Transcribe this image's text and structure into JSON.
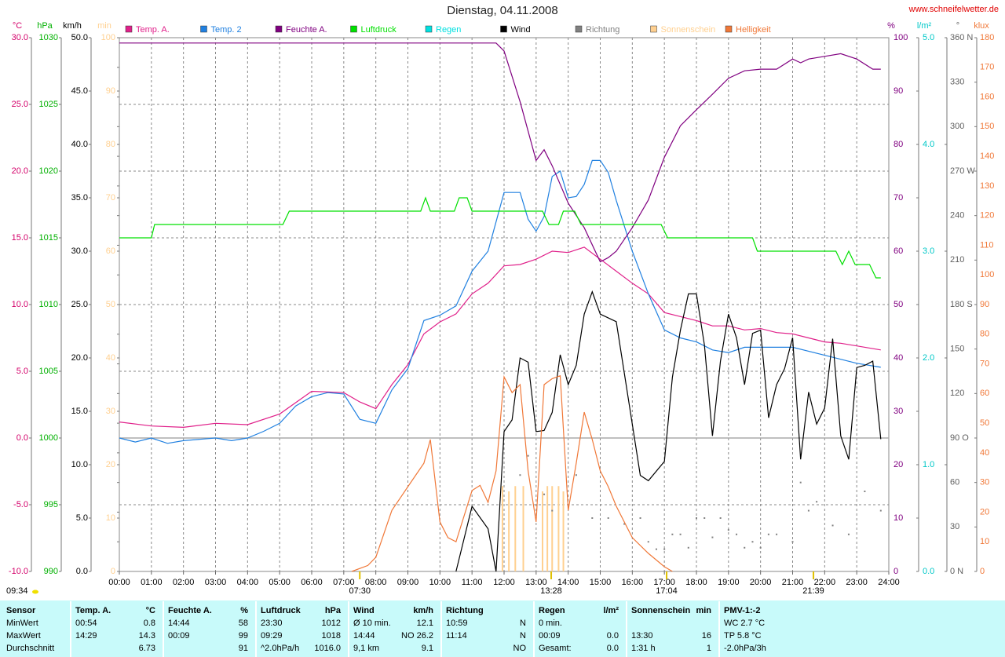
{
  "header": {
    "title": "Dienstag, 04.11.2008",
    "url": "www.schneifelwetter.de",
    "updated": "09:34"
  },
  "chart_data": {
    "type": "line",
    "grid": true,
    "xlim": [
      0,
      24
    ],
    "xticks": [
      {
        "value": 0,
        "label": "00:00"
      },
      {
        "value": 1,
        "label": "01:00"
      },
      {
        "value": 2,
        "label": "02:00"
      },
      {
        "value": 3,
        "label": "03:00"
      },
      {
        "value": 4,
        "label": "04:00"
      },
      {
        "value": 5,
        "label": "05:00"
      },
      {
        "value": 6,
        "label": "06:00"
      },
      {
        "value": 7,
        "label": "07:00"
      },
      {
        "value": 8,
        "label": "08:00"
      },
      {
        "value": 9,
        "label": "09:00"
      },
      {
        "value": 10,
        "label": "10:00"
      },
      {
        "value": 11,
        "label": "11:00"
      },
      {
        "value": 12,
        "label": "12:00"
      },
      {
        "value": 13,
        "label": "13:00"
      },
      {
        "value": 14,
        "label": "14:00"
      },
      {
        "value": 15,
        "label": "15:00"
      },
      {
        "value": 16,
        "label": "16:00"
      },
      {
        "value": 17,
        "label": "17:00"
      },
      {
        "value": 18,
        "label": "18:00"
      },
      {
        "value": 19,
        "label": "19:00"
      },
      {
        "value": 20,
        "label": "20:00"
      },
      {
        "value": 21,
        "label": "21:00"
      },
      {
        "value": 22,
        "label": "22:00"
      },
      {
        "value": 23,
        "label": "23:00"
      },
      {
        "value": 24,
        "label": "24:00"
      }
    ],
    "axes": [
      {
        "label": "°C",
        "side": "left",
        "color": "#d4006a",
        "lim": [
          -10,
          30
        ],
        "ticks": [
          {
            "value": 30,
            "label": "30.0"
          },
          {
            "value": 25,
            "label": "25.0"
          },
          {
            "value": 20,
            "label": "20.0"
          },
          {
            "value": 15,
            "label": "15.0"
          },
          {
            "value": 10,
            "label": "10.0"
          },
          {
            "value": 5,
            "label": "5.0"
          },
          {
            "value": 0,
            "label": "0.0"
          },
          {
            "value": -5,
            "label": "-5.0"
          },
          {
            "value": -10,
            "label": "-10.0"
          }
        ]
      },
      {
        "label": "hPa",
        "side": "left",
        "color": "#00b000",
        "lim": [
          990,
          1030
        ],
        "ticks": [
          1030,
          1025,
          1020,
          1015,
          1010,
          1005,
          1000,
          995,
          990
        ]
      },
      {
        "label": "km/h",
        "side": "left",
        "color": "#000000",
        "lim": [
          0,
          50
        ],
        "ticks": [
          {
            "value": 50,
            "label": "50.0"
          },
          {
            "value": 45,
            "label": "45.0"
          },
          {
            "value": 40,
            "label": "40.0"
          },
          {
            "value": 35,
            "label": "35.0"
          },
          {
            "value": 30,
            "label": "30.0"
          },
          {
            "value": 25,
            "label": "25.0"
          },
          {
            "value": 20,
            "label": "20.0"
          },
          {
            "value": 15,
            "label": "15.0"
          },
          {
            "value": 10,
            "label": "10.0"
          },
          {
            "value": 5,
            "label": "5.0"
          },
          {
            "value": 0,
            "label": "0.0"
          }
        ]
      },
      {
        "label": "min",
        "side": "left",
        "color": "#ffd090",
        "lim": [
          0,
          100
        ],
        "ticks": [
          100,
          90,
          80,
          70,
          60,
          50,
          40,
          30,
          20,
          10,
          0
        ]
      },
      {
        "label": "%",
        "side": "right",
        "color": "#800080",
        "lim": [
          0,
          100
        ],
        "ticks": [
          100,
          90,
          80,
          70,
          60,
          50,
          40,
          30,
          20,
          10,
          0
        ]
      },
      {
        "label": "l/m²",
        "side": "right",
        "color": "#00c8c8",
        "lim": [
          0,
          5
        ],
        "ticks": [
          {
            "value": 5,
            "label": "5.0"
          },
          {
            "value": 4,
            "label": "4.0"
          },
          {
            "value": 3,
            "label": "3.0"
          },
          {
            "value": 2,
            "label": "2.0"
          },
          {
            "value": 1,
            "label": "1.0"
          },
          {
            "value": 0,
            "label": "0.0"
          }
        ]
      },
      {
        "label": "°",
        "side": "right",
        "color": "#606060",
        "lim": [
          0,
          360
        ],
        "ticks": [
          {
            "value": 360,
            "label": "360 N"
          },
          330,
          300,
          {
            "value": 270,
            "label": "270 W"
          },
          240,
          210,
          {
            "value": 180,
            "label": "180 S"
          },
          150,
          120,
          {
            "value": 90,
            "label": "90 O"
          },
          60,
          30,
          {
            "value": 0,
            "label": "0 N"
          }
        ]
      },
      {
        "label": "klux",
        "side": "right",
        "color": "#f07838",
        "lim": [
          0,
          180
        ],
        "ticks": [
          180,
          170,
          160,
          150,
          140,
          130,
          120,
          110,
          100,
          90,
          80,
          70,
          60,
          50,
          40,
          30,
          20,
          10,
          0
        ]
      }
    ],
    "series": [
      {
        "name": "Temp. A.",
        "type": "line",
        "axis": "°C",
        "color": "#e0208a",
        "x": [
          0,
          1,
          2,
          3,
          4,
          5,
          6,
          7,
          7.5,
          8,
          8.5,
          9,
          9.5,
          10,
          10.5,
          11,
          11.5,
          12,
          12.5,
          13,
          13.5,
          14,
          14.5,
          15,
          15.5,
          16,
          16.5,
          17,
          17.5,
          18,
          18.5,
          19,
          19.5,
          20,
          20.5,
          21,
          21.5,
          22,
          22.5,
          23,
          23.75
        ],
        "values": [
          1.2,
          0.9,
          0.8,
          1.1,
          1.0,
          1.8,
          3.5,
          3.4,
          2.7,
          2.2,
          4.0,
          5.5,
          7.8,
          8.7,
          9.3,
          10.8,
          11.6,
          12.9,
          13.0,
          13.4,
          14.0,
          13.9,
          14.3,
          13.4,
          12.5,
          11.6,
          10.8,
          9.4,
          9.1,
          8.8,
          8.4,
          8.4,
          8.1,
          8.2,
          7.9,
          7.8,
          7.5,
          7.2,
          7.1,
          6.9,
          6.6
        ]
      },
      {
        "name": "Temp. 2",
        "type": "line",
        "axis": "°C",
        "color": "#2080e0",
        "x": [
          0,
          0.5,
          1,
          1.5,
          2,
          3,
          3.5,
          4,
          4.5,
          5,
          5.5,
          6,
          6.5,
          7,
          7.5,
          8,
          8.5,
          9,
          9.5,
          10,
          10.5,
          11,
          11.5,
          12,
          12.5,
          12.75,
          13,
          13.25,
          13.5,
          13.75,
          14,
          14.25,
          14.5,
          14.75,
          15,
          15.25,
          15.5,
          16,
          16.5,
          17,
          17.5,
          18,
          18.5,
          19,
          19.5,
          20,
          21,
          22,
          23,
          23.75
        ],
        "values": [
          0,
          -0.3,
          0,
          -0.4,
          -0.2,
          0,
          -0.2,
          0,
          0.5,
          1.1,
          2.4,
          3.1,
          3.4,
          3.3,
          1.4,
          1.1,
          3.6,
          5.2,
          8.8,
          9.2,
          9.9,
          12.5,
          14.0,
          18.4,
          18.4,
          16.4,
          15.5,
          16.6,
          19.6,
          20.0,
          18.0,
          18.1,
          19.0,
          20.8,
          20.8,
          19.9,
          17.8,
          14.0,
          10.8,
          8.1,
          7.5,
          7.2,
          6.6,
          6.4,
          6.8,
          6.8,
          6.8,
          6.2,
          5.6,
          5.3
        ]
      },
      {
        "name": "Feuchte A.",
        "type": "line",
        "axis": "%",
        "color": "#800080",
        "x": [
          0,
          11.75,
          12,
          12.5,
          13,
          13.25,
          13.5,
          14,
          14.5,
          15,
          15.25,
          15.5,
          16,
          16.5,
          17,
          17.5,
          18,
          18.5,
          19,
          19.5,
          20,
          20.5,
          21,
          21.25,
          21.5,
          22,
          22.5,
          23,
          23.5,
          23.75
        ],
        "values": [
          99,
          99,
          97.5,
          88,
          77,
          79,
          76,
          69,
          64.4,
          58,
          58.8,
          60,
          64.4,
          69.6,
          77.6,
          83.5,
          86.5,
          89.4,
          92.4,
          93.8,
          94.1,
          94.1,
          96,
          95.3,
          96,
          96.5,
          97,
          96,
          94.1,
          94.1
        ]
      },
      {
        "name": "Luftdruck",
        "type": "line",
        "axis": "hPa",
        "color": "#00e000",
        "x": [
          0,
          1.0,
          1.1,
          5.1,
          5.3,
          9.4,
          9.55,
          9.7,
          9.85,
          10.45,
          10.6,
          10.85,
          11.0,
          13.2,
          13.4,
          13.7,
          13.85,
          14.2,
          14.4,
          16.9,
          17.1,
          19.75,
          19.9,
          22.35,
          22.55,
          22.75,
          22.95,
          23.4,
          23.6,
          23.75
        ],
        "values": [
          1015,
          1015,
          1016,
          1016,
          1017,
          1017,
          1018,
          1017,
          1017,
          1017,
          1018,
          1018,
          1017,
          1017,
          1016,
          1016,
          1017,
          1017,
          1016,
          1016,
          1015,
          1015,
          1014,
          1014,
          1013,
          1014,
          1013,
          1013,
          1012,
          1012
        ]
      },
      {
        "name": "Regen",
        "type": "line",
        "axis": "l/m²",
        "color": "#00e0e0",
        "x": [],
        "values": []
      },
      {
        "name": "Wind",
        "type": "line",
        "axis": "km/h",
        "color": "#000000",
        "x": [
          10.5,
          11,
          11.5,
          11.75,
          12,
          12.25,
          12.5,
          12.75,
          13,
          13.25,
          13.5,
          13.75,
          14,
          14.25,
          14.5,
          14.75,
          15,
          15.5,
          16,
          16.25,
          16.5,
          17,
          17.25,
          17.5,
          17.75,
          18,
          18.25,
          18.5,
          18.75,
          19,
          19.25,
          19.5,
          19.75,
          20,
          20.25,
          20.5,
          20.75,
          21,
          21.25,
          21.5,
          21.75,
          22,
          22.25,
          22.5,
          22.75,
          23,
          23.25,
          23.5,
          23.75
        ],
        "values": [
          0,
          6.1,
          4,
          0,
          13.1,
          14.2,
          20,
          19.6,
          13.1,
          13.2,
          14.9,
          20.3,
          17.5,
          19.3,
          24.1,
          26.2,
          24.1,
          23.4,
          13.8,
          9.0,
          8.5,
          10.3,
          18.2,
          22.6,
          26,
          26,
          21.2,
          12.7,
          19.7,
          24.1,
          21.9,
          17.5,
          22.3,
          22.6,
          14.4,
          17.5,
          19,
          21.9,
          10.5,
          16.8,
          13.8,
          15.3,
          21.8,
          12.7,
          10.5,
          19.1,
          19.3,
          19.7,
          12.4
        ]
      },
      {
        "name": "Richtung",
        "type": "dots",
        "axis": "°",
        "color": "#808080",
        "x": [
          11,
          12.5,
          12.75,
          13.25,
          13.5,
          14.25,
          14.75,
          15.25,
          15.75,
          16.25,
          16.5,
          16.75,
          17,
          17.25,
          17.5,
          17.75,
          18,
          18.25,
          18.5,
          18.75,
          19,
          19.25,
          19.5,
          19.75,
          20,
          20.25,
          20.5,
          21,
          21.25,
          21.5,
          21.75,
          22.25,
          22.75,
          23.25,
          23.75
        ],
        "values": [
          241,
          65,
          78,
          52,
          41,
          65,
          36,
          36,
          32,
          36,
          20,
          15,
          15,
          25,
          25,
          16,
          36,
          36,
          23,
          36,
          28,
          25,
          16,
          20,
          16,
          25,
          25,
          20,
          60,
          41,
          47,
          31,
          25,
          54,
          41
        ]
      },
      {
        "name": "Sonnenschein",
        "type": "bar",
        "axis": "min",
        "color": "#ffd090",
        "x": [
          11.95,
          12.15,
          12.35,
          12.6,
          13.2,
          13.35,
          13.5,
          13.7,
          13.85
        ],
        "values": [
          16,
          15,
          16,
          16,
          15,
          16,
          16,
          16,
          15
        ]
      },
      {
        "name": "Helligkeit",
        "type": "line",
        "axis": "klux",
        "color": "#f07838",
        "x": [
          7.25,
          7.75,
          8,
          8.5,
          9,
          9.5,
          9.7,
          10,
          10.25,
          10.5,
          11,
          11.25,
          11.5,
          11.75,
          12,
          12.25,
          12.5,
          12.75,
          13,
          13.25,
          13.5,
          13.75,
          14,
          14.25,
          14.5,
          14.75,
          15,
          15.25,
          15.5,
          16,
          16.5,
          17,
          17.25
        ],
        "values": [
          0,
          2,
          4.8,
          20.6,
          28.6,
          36.5,
          44.5,
          16.7,
          11.4,
          10,
          27.3,
          29,
          23.3,
          33.9,
          65.6,
          60.3,
          63,
          33.9,
          16.7,
          63,
          65,
          66,
          20.6,
          36.5,
          53.7,
          44.5,
          33.9,
          28.6,
          22,
          11.4,
          6.1,
          1.6,
          0
        ]
      }
    ],
    "markers": [
      {
        "x": 7.5,
        "label": "07:30"
      },
      {
        "x": 13.47,
        "label": "13:28"
      },
      {
        "x": 17.07,
        "label": "17:04"
      },
      {
        "x": 21.65,
        "label": "21:39"
      }
    ]
  },
  "table": {
    "header": [
      [
        "Sensor",
        null
      ],
      [
        "Temp. A.",
        "°C"
      ],
      [
        "Feuchte A.",
        "%"
      ],
      [
        "Luftdruck",
        "hPa"
      ],
      [
        "Wind",
        "km/h"
      ],
      [
        "Richtung",
        null
      ],
      [
        "Regen",
        "l/m²"
      ],
      [
        "Sonnenschein",
        "min"
      ],
      [
        "PMV-1:-2",
        null
      ]
    ],
    "rows": [
      [
        [
          "MinWert",
          null
        ],
        [
          "00:54",
          "0.8"
        ],
        [
          "14:44",
          "58"
        ],
        [
          "23:30",
          "1012"
        ],
        [
          "Ø 10 min.",
          "12.1"
        ],
        [
          "10:59",
          "N"
        ],
        [
          "0 min.",
          null
        ],
        null,
        [
          "WC 2.7 °C",
          null
        ]
      ],
      [
        [
          "MaxWert",
          null
        ],
        [
          "14:29",
          "14.3"
        ],
        [
          "00:09",
          "99"
        ],
        [
          "09:29",
          "1018"
        ],
        [
          "14:44",
          "NO 26.2"
        ],
        [
          "11:14",
          "N"
        ],
        [
          "00:09",
          "0.0"
        ],
        [
          "13:30",
          "16"
        ],
        [
          "TP 5.8 °C",
          null
        ]
      ],
      [
        [
          "Durchschnitt",
          null
        ],
        [
          null,
          "6.73"
        ],
        [
          null,
          "91"
        ],
        [
          "^2.0hPa/h",
          "1016.0"
        ],
        [
          "9,1 km",
          "9.1"
        ],
        [
          null,
          "NO"
        ],
        [
          "Gesamt:",
          "0.0"
        ],
        [
          "1:31 h",
          "1"
        ],
        [
          "-2.0hPa/3h",
          null
        ]
      ]
    ]
  }
}
